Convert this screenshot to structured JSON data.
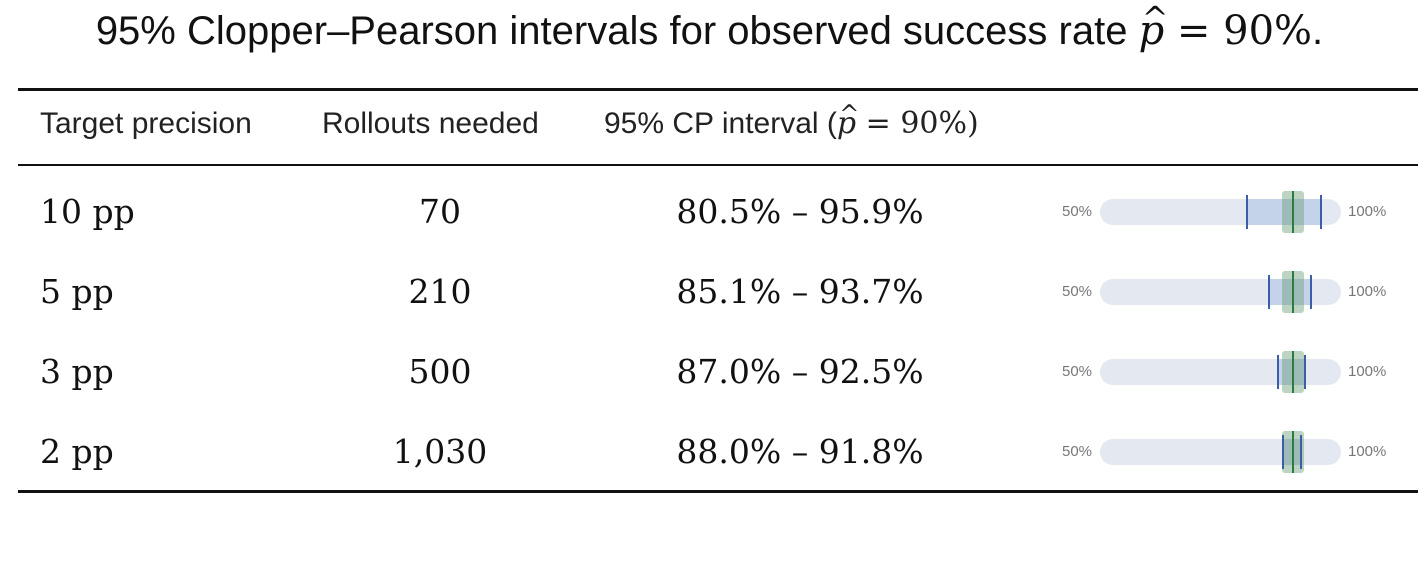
{
  "title": {
    "prefix": "95% Clopper–Pearson intervals for observed success rate ",
    "phat": "p",
    "equals": " = 90%",
    "suffix": "."
  },
  "header": {
    "col1": "Target precision",
    "col2": "Rollouts needed",
    "col3_prefix": "95% CP interval (",
    "col3_phat": "p",
    "col3_rest": " = 90%)"
  },
  "axis": {
    "min_label": "50%",
    "max_label": "100%",
    "min": 50,
    "max": 100,
    "observed": 90
  },
  "rows": [
    {
      "precision": "10 pp",
      "rollouts": "70",
      "interval": "80.5% – 95.9%",
      "lo": 80.5,
      "hi": 95.9
    },
    {
      "precision": "5 pp",
      "rollouts": "210",
      "interval": "85.1% – 93.7%",
      "lo": 85.1,
      "hi": 93.7
    },
    {
      "precision": "3 pp",
      "rollouts": "500",
      "interval": "87.0% – 92.5%",
      "lo": 87.0,
      "hi": 92.5
    },
    {
      "precision": "2 pp",
      "rollouts": "1,030",
      "interval": "88.0% – 91.8%",
      "lo": 88.0,
      "hi": 91.8
    }
  ],
  "colors": {
    "track": "#e3e8f1",
    "interval_fill": "#c4d2ea",
    "bound_tick": "#3a5fa8",
    "observed_line": "#2e7a42",
    "observed_band": "#8fbb98"
  }
}
